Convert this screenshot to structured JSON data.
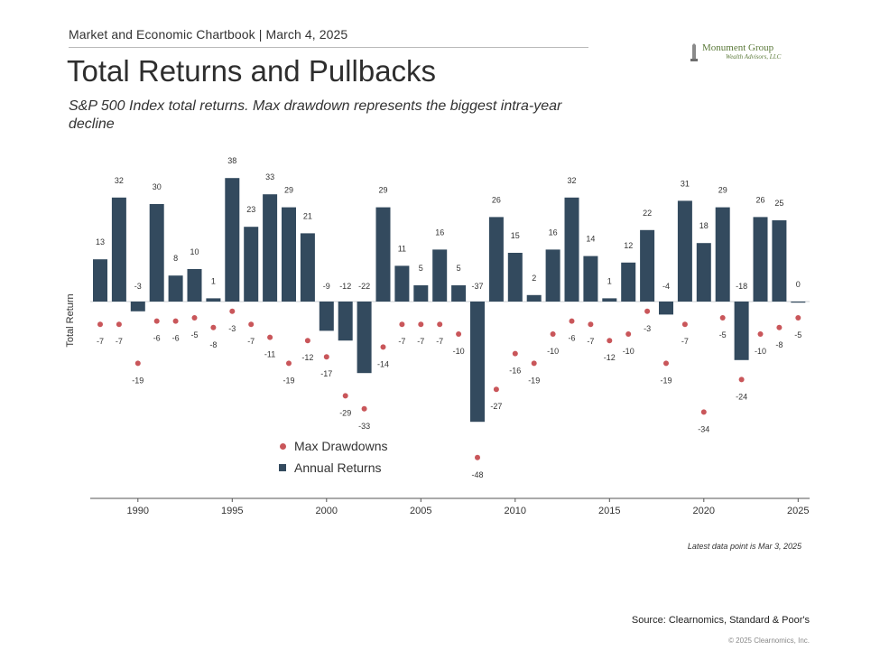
{
  "header": {
    "chartbook": "Market and Economic Chartbook | March 4, 2025"
  },
  "logo": {
    "name": "Monument Group",
    "sub": "Wealth Advisors, LLC"
  },
  "title": "Total Returns and Pullbacks",
  "subtitle": "S&P 500 Index total returns. Max drawdown represents the biggest intra-year decline",
  "note": "Latest data point is Mar 3, 2025",
  "source": "Source: Clearnomics, Standard & Poor's",
  "copyright": "© 2025 Clearnomics, Inc.",
  "colors": {
    "bars": "#334a5e",
    "dots": "#c9565a",
    "axis": "#333333"
  },
  "chart_data": {
    "type": "bar",
    "ylabel": "Total Return",
    "xticks": [
      "1990",
      "1995",
      "2000",
      "2005",
      "2010",
      "2015",
      "2020",
      "2025"
    ],
    "ylim": [
      -50,
      40
    ],
    "legend": {
      "placement": "bottom-left",
      "items": [
        "Max Drawdowns",
        "Annual Returns"
      ]
    },
    "categories": [
      1988,
      1989,
      1990,
      1991,
      1992,
      1993,
      1994,
      1995,
      1996,
      1997,
      1998,
      1999,
      2000,
      2001,
      2002,
      2003,
      2004,
      2005,
      2006,
      2007,
      2008,
      2009,
      2010,
      2011,
      2012,
      2013,
      2014,
      2015,
      2016,
      2017,
      2018,
      2019,
      2020,
      2021,
      2022,
      2023,
      2024,
      2025
    ],
    "series": [
      {
        "name": "Annual Returns",
        "type": "bar",
        "values": [
          13,
          32,
          -3,
          30,
          8,
          10,
          1,
          38,
          23,
          33,
          29,
          21,
          -9,
          -12,
          -22,
          29,
          11,
          5,
          16,
          5,
          -37,
          26,
          15,
          2,
          16,
          32,
          14,
          1,
          12,
          22,
          -4,
          31,
          18,
          29,
          -18,
          26,
          25,
          0
        ]
      },
      {
        "name": "Max Drawdowns",
        "type": "scatter",
        "values": [
          -7,
          -7,
          -19,
          -6,
          -6,
          -5,
          -8,
          -3,
          -7,
          -11,
          -19,
          -12,
          -17,
          -29,
          -33,
          -14,
          -7,
          -7,
          -7,
          -10,
          -48,
          -27,
          -16,
          -19,
          -10,
          -6,
          -7,
          -12,
          -10,
          -3,
          -19,
          -7,
          -34,
          -5,
          -24,
          -10,
          -8,
          -5
        ]
      }
    ]
  }
}
